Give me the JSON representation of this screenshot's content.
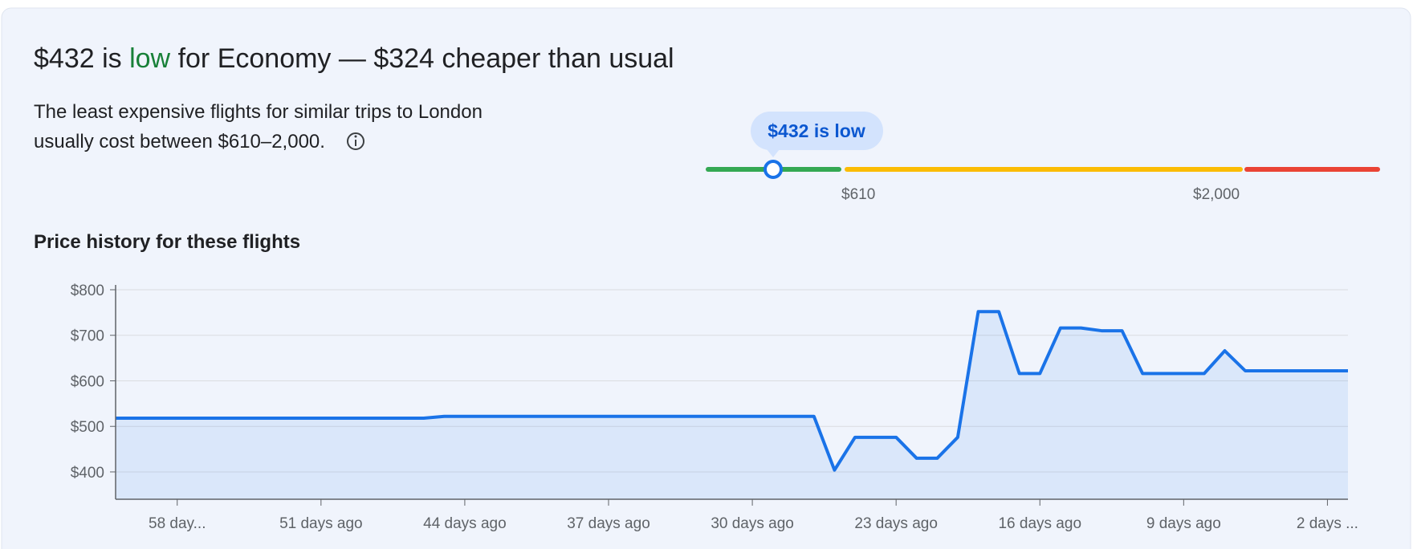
{
  "header": {
    "title_parts": [
      "$432 is ",
      "low",
      " for Economy — $324 cheaper than usual"
    ],
    "description_lines": [
      "The least expensive flights for similar trips to London",
      "usually cost between $610–2,000."
    ]
  },
  "price_bar": {
    "marker_label": "$432 is low",
    "low_label": "$610",
    "high_label": "$2,000"
  },
  "chart_data": {
    "type": "area",
    "title": "Price history for these flights",
    "x": [
      61,
      60,
      59,
      58,
      57,
      56,
      55,
      54,
      53,
      52,
      51,
      50,
      49,
      48,
      47,
      46,
      45,
      44,
      43,
      42,
      41,
      40,
      39,
      38,
      37,
      36,
      35,
      34,
      33,
      32,
      31,
      30,
      29,
      28,
      27,
      26,
      25,
      24,
      23,
      22,
      21,
      20,
      19,
      18,
      17,
      16,
      15,
      14,
      13,
      12,
      11,
      10,
      9,
      8,
      7,
      6,
      5,
      4,
      3,
      2,
      1
    ],
    "series": [
      {
        "color": "#1a73e8",
        "values": [
          518,
          518,
          518,
          518,
          518,
          518,
          518,
          518,
          518,
          518,
          518,
          518,
          518,
          518,
          518,
          518,
          522,
          522,
          522,
          522,
          522,
          522,
          522,
          522,
          522,
          522,
          522,
          522,
          522,
          522,
          522,
          522,
          522,
          522,
          522,
          404,
          476,
          476,
          476,
          430,
          430,
          476,
          752,
          752,
          616,
          616,
          716,
          716,
          710,
          710,
          616,
          616,
          616,
          616,
          666,
          622,
          622,
          622,
          622,
          622,
          622
        ]
      }
    ],
    "xlim": [
      61,
      1
    ],
    "xticks": [
      {
        "value": 58,
        "label": "58 day..."
      },
      {
        "value": 51,
        "label": "51 days ago"
      },
      {
        "value": 44,
        "label": "44 days ago"
      },
      {
        "value": 37,
        "label": "37 days ago"
      },
      {
        "value": 30,
        "label": "30 days ago"
      },
      {
        "value": 23,
        "label": "23 days ago"
      },
      {
        "value": 16,
        "label": "16 days ago"
      },
      {
        "value": 9,
        "label": "9 days ago"
      },
      {
        "value": 2,
        "label": "2 days ..."
      }
    ],
    "ylim": [
      340,
      800
    ],
    "yticks": [
      {
        "value": 400,
        "label": "$400"
      },
      {
        "value": 500,
        "label": "$500"
      },
      {
        "value": 600,
        "label": "$600"
      },
      {
        "value": 700,
        "label": "$700"
      },
      {
        "value": 800,
        "label": "$800"
      }
    ],
    "grid": true
  }
}
